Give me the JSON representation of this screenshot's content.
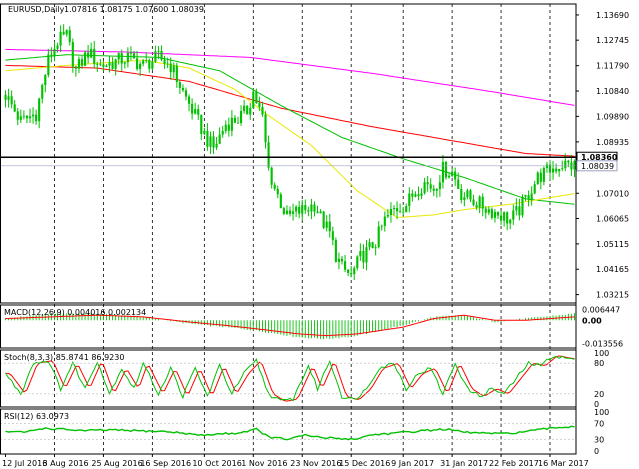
{
  "chart_data": {
    "type": "candlestick",
    "title": "EURUSD,Daily",
    "ohlc_header": [
      "1.07816",
      "1.08175",
      "1.07600",
      "1.08039"
    ],
    "price_axis": {
      "range": [
        1.029,
        1.141
      ],
      "ticks": [
        "1.13690",
        "1.12745",
        "1.11790",
        "1.10840",
        "1.09890",
        "1.08935",
        "1.07010",
        "1.06065",
        "1.05115",
        "1.04165",
        "1.03215"
      ]
    },
    "price_tags": [
      {
        "label": "1.08360",
        "value": 1.0836,
        "style": "level"
      },
      {
        "label": "1.08039",
        "value": 1.08039,
        "style": "bid"
      }
    ],
    "horizontal_line": 1.0836,
    "x_axis": {
      "labels": [
        "12 Jul 2016",
        "3 Aug 2016",
        "25 Aug 2016",
        "16 Sep 2016",
        "10 Oct 2016",
        "1 Nov 2016",
        "23 Nov 2016",
        "15 Dec 2016",
        "9 Jan 2017",
        "31 Jan 2017",
        "22 Feb 2017",
        "16 Mar 2017"
      ],
      "label_bars": [
        0,
        16,
        32,
        48,
        65,
        81,
        97,
        113,
        130,
        146,
        162,
        178
      ]
    },
    "bars": 187,
    "anchors_close": [
      [
        0,
        1.107
      ],
      [
        5,
        1.097
      ],
      [
        10,
        1.1
      ],
      [
        14,
        1.12
      ],
      [
        17,
        1.127
      ],
      [
        20,
        1.129
      ],
      [
        23,
        1.116
      ],
      [
        27,
        1.123
      ],
      [
        31,
        1.118
      ],
      [
        35,
        1.119
      ],
      [
        40,
        1.121
      ],
      [
        45,
        1.118
      ],
      [
        50,
        1.121
      ],
      [
        54,
        1.118
      ],
      [
        58,
        1.108
      ],
      [
        62,
        1.099
      ],
      [
        66,
        1.09
      ],
      [
        68,
        1.087
      ],
      [
        72,
        1.096
      ],
      [
        76,
        1.098
      ],
      [
        79,
        1.101
      ],
      [
        81,
        1.108
      ],
      [
        84,
        1.098
      ],
      [
        86,
        1.079
      ],
      [
        88,
        1.072
      ],
      [
        92,
        1.061
      ],
      [
        95,
        1.063
      ],
      [
        98,
        1.064
      ],
      [
        101,
        1.066
      ],
      [
        103,
        1.061
      ],
      [
        106,
        1.055
      ],
      [
        108,
        1.047
      ],
      [
        110,
        1.042
      ],
      [
        113,
        1.039
      ],
      [
        116,
        1.046
      ],
      [
        118,
        1.048
      ],
      [
        121,
        1.052
      ],
      [
        124,
        1.06
      ],
      [
        127,
        1.064
      ],
      [
        131,
        1.066
      ],
      [
        134,
        1.071
      ],
      [
        137,
        1.074
      ],
      [
        140,
        1.072
      ],
      [
        143,
        1.079
      ],
      [
        146,
        1.078
      ],
      [
        149,
        1.07
      ],
      [
        152,
        1.068
      ],
      [
        155,
        1.066
      ],
      [
        158,
        1.064
      ],
      [
        162,
        1.062
      ],
      [
        165,
        1.06
      ],
      [
        168,
        1.064
      ],
      [
        171,
        1.07
      ],
      [
        174,
        1.076
      ],
      [
        178,
        1.079
      ],
      [
        182,
        1.081
      ],
      [
        186,
        1.0804
      ]
    ],
    "moving_averages": [
      {
        "color": "#ff00ff",
        "anchors": [
          [
            0,
            1.124
          ],
          [
            40,
            1.123
          ],
          [
            80,
            1.121
          ],
          [
            120,
            1.115
          ],
          [
            160,
            1.108
          ],
          [
            186,
            1.103
          ]
        ]
      },
      {
        "color": "#ff0000",
        "anchors": [
          [
            0,
            1.118
          ],
          [
            30,
            1.117
          ],
          [
            60,
            1.112
          ],
          [
            90,
            1.102
          ],
          [
            120,
            1.095
          ],
          [
            150,
            1.089
          ],
          [
            170,
            1.085
          ],
          [
            186,
            1.084
          ]
        ]
      },
      {
        "color": "#00c000",
        "anchors": [
          [
            0,
            1.12
          ],
          [
            20,
            1.122
          ],
          [
            50,
            1.121
          ],
          [
            70,
            1.116
          ],
          [
            90,
            1.103
          ],
          [
            110,
            1.091
          ],
          [
            130,
            1.083
          ],
          [
            150,
            1.076
          ],
          [
            170,
            1.068
          ],
          [
            186,
            1.066
          ]
        ]
      },
      {
        "color": "#e8e800",
        "anchors": [
          [
            0,
            1.116
          ],
          [
            20,
            1.118
          ],
          [
            45,
            1.12
          ],
          [
            60,
            1.117
          ],
          [
            75,
            1.109
          ],
          [
            85,
            1.1
          ],
          [
            100,
            1.088
          ],
          [
            115,
            1.071
          ],
          [
            128,
            1.061
          ],
          [
            140,
            1.062
          ],
          [
            150,
            1.064
          ],
          [
            165,
            1.066
          ],
          [
            186,
            1.07
          ]
        ]
      }
    ],
    "macd": {
      "label": "MACD(12,26,9) 0.004016 0.002134",
      "ticks": [
        "0.006447",
        "0.00",
        "-0.013556"
      ],
      "range": [
        -0.0145,
        0.0072
      ],
      "hist_anchors": [
        [
          0,
          0.001
        ],
        [
          15,
          0.004
        ],
        [
          30,
          0.004
        ],
        [
          45,
          0.002
        ],
        [
          60,
          -0.002
        ],
        [
          72,
          -0.004
        ],
        [
          82,
          -0.006
        ],
        [
          96,
          -0.01
        ],
        [
          105,
          -0.011
        ],
        [
          115,
          -0.009
        ],
        [
          130,
          -0.003
        ],
        [
          140,
          0.002
        ],
        [
          150,
          0.003
        ],
        [
          160,
          -0.001
        ],
        [
          170,
          0.001
        ],
        [
          186,
          0.004
        ]
      ],
      "signal_anchors": [
        [
          0,
          0.001
        ],
        [
          15,
          0.002
        ],
        [
          30,
          0.003
        ],
        [
          45,
          0.002
        ],
        [
          60,
          -0.001
        ],
        [
          72,
          -0.003
        ],
        [
          82,
          -0.005
        ],
        [
          96,
          -0.008
        ],
        [
          105,
          -0.009
        ],
        [
          115,
          -0.008
        ],
        [
          130,
          -0.004
        ],
        [
          140,
          0.001
        ],
        [
          150,
          0.003
        ],
        [
          160,
          0.0
        ],
        [
          170,
          0.0
        ],
        [
          186,
          0.002
        ]
      ]
    },
    "stoch": {
      "label": "Stoch(8,3,3) 85.8741 86.9230",
      "ticks": [
        "100",
        "80",
        "20",
        "0"
      ],
      "range": [
        0,
        100
      ],
      "anchors": [
        [
          0,
          60
        ],
        [
          5,
          20
        ],
        [
          9,
          80
        ],
        [
          14,
          85
        ],
        [
          18,
          30
        ],
        [
          22,
          80
        ],
        [
          26,
          30
        ],
        [
          30,
          85
        ],
        [
          34,
          20
        ],
        [
          38,
          70
        ],
        [
          42,
          30
        ],
        [
          45,
          80
        ],
        [
          50,
          20
        ],
        [
          54,
          70
        ],
        [
          58,
          15
        ],
        [
          62,
          70
        ],
        [
          66,
          15
        ],
        [
          70,
          75
        ],
        [
          74,
          20
        ],
        [
          78,
          60
        ],
        [
          82,
          85
        ],
        [
          86,
          20
        ],
        [
          90,
          5
        ],
        [
          94,
          10
        ],
        [
          99,
          75
        ],
        [
          102,
          30
        ],
        [
          106,
          85
        ],
        [
          110,
          15
        ],
        [
          114,
          8
        ],
        [
          118,
          30
        ],
        [
          122,
          70
        ],
        [
          127,
          80
        ],
        [
          131,
          30
        ],
        [
          135,
          60
        ],
        [
          139,
          70
        ],
        [
          143,
          20
        ],
        [
          147,
          80
        ],
        [
          151,
          30
        ],
        [
          155,
          15
        ],
        [
          159,
          30
        ],
        [
          163,
          20
        ],
        [
          167,
          50
        ],
        [
          171,
          80
        ],
        [
          175,
          75
        ],
        [
          179,
          95
        ],
        [
          183,
          90
        ],
        [
          186,
          88
        ]
      ]
    },
    "rsi": {
      "label": "RSI(12) 63.0973",
      "ticks": [
        "100",
        "70",
        "30",
        "0"
      ],
      "range": [
        0,
        100
      ],
      "anchors": [
        [
          0,
          50
        ],
        [
          6,
          48
        ],
        [
          12,
          58
        ],
        [
          18,
          56
        ],
        [
          26,
          52
        ],
        [
          34,
          54
        ],
        [
          42,
          52
        ],
        [
          52,
          50
        ],
        [
          58,
          46
        ],
        [
          64,
          40
        ],
        [
          70,
          44
        ],
        [
          76,
          46
        ],
        [
          82,
          56
        ],
        [
          86,
          36
        ],
        [
          92,
          30
        ],
        [
          98,
          40
        ],
        [
          104,
          34
        ],
        [
          110,
          32
        ],
        [
          114,
          30
        ],
        [
          120,
          42
        ],
        [
          128,
          46
        ],
        [
          136,
          52
        ],
        [
          144,
          56
        ],
        [
          150,
          48
        ],
        [
          156,
          46
        ],
        [
          162,
          44
        ],
        [
          168,
          48
        ],
        [
          174,
          54
        ],
        [
          180,
          60
        ],
        [
          186,
          63
        ]
      ]
    }
  }
}
